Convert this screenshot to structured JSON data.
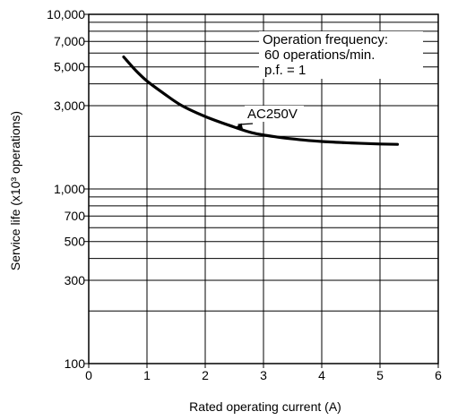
{
  "chart_data": {
    "type": "line",
    "title": "",
    "xlabel": "Rated operating current (A)",
    "ylabel": "Service life (x10³ operations)",
    "xlim": [
      0,
      6
    ],
    "ylim": [
      100,
      10000
    ],
    "y_scale": "log",
    "grid": true,
    "x_ticks": [
      0,
      1,
      2,
      3,
      4,
      5,
      6
    ],
    "x_tick_labels": [
      "0",
      "1",
      "2",
      "3",
      "4",
      "5",
      "6"
    ],
    "y_ticks": [
      100,
      300,
      500,
      700,
      1000,
      3000,
      5000,
      7000,
      10000
    ],
    "y_tick_labels": [
      "100",
      "300",
      "500",
      "700",
      "1,000",
      "3,000",
      "5,000",
      "7,000",
      "10,000"
    ],
    "series": [
      {
        "name": "AC250V",
        "x": [
          0.6,
          0.8,
          1.0,
          1.3,
          1.6,
          2.0,
          2.4,
          2.8,
          3.2,
          3.6,
          4.0,
          4.5,
          5.0,
          5.3
        ],
        "y": [
          5700,
          4800,
          4150,
          3500,
          3000,
          2600,
          2320,
          2100,
          1990,
          1920,
          1870,
          1835,
          1810,
          1800
        ],
        "color": "#000000"
      }
    ],
    "annotation": {
      "lines": [
        "Operation frequency:",
        "60 operations/min.",
        "p.f. = 1"
      ]
    },
    "series_label": {
      "text": "AC250V",
      "target_x": 2.5,
      "target_y": 2230
    }
  }
}
